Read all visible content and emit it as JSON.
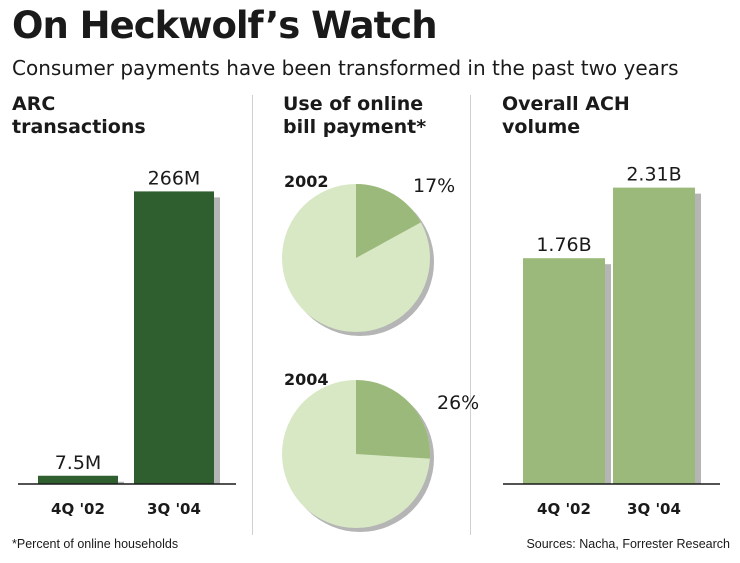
{
  "header": {
    "title": "On Heckwolf’s Watch",
    "subtitle": "Consumer payments have been transformed in the past two years"
  },
  "footer": {
    "footnote": "*Percent of online households",
    "source": "Sources: Nacha, Forrester Research"
  },
  "colors": {
    "dark_green": "#2f5f2f",
    "light_green": "#9bb97a",
    "pie_background": "#d8e8c4",
    "shadow": "#b5b5b5"
  },
  "chart_data": [
    {
      "type": "bar",
      "title": "ARC transactions",
      "title_lines": [
        "ARC",
        "transactions"
      ],
      "categories": [
        "4Q '02",
        "3Q '04"
      ],
      "values": [
        7.5,
        266
      ],
      "value_labels": [
        "7.5M",
        "266M"
      ],
      "unit": "millions",
      "ylim": [
        0,
        300
      ],
      "color": "#2f5f2f"
    },
    {
      "type": "pie",
      "title": "Use of online bill payment*",
      "title_lines": [
        "Use of online",
        "bill payment*"
      ],
      "pies": [
        {
          "label": "2002",
          "value": 17,
          "value_label": "17%"
        },
        {
          "label": "2004",
          "value": 26,
          "value_label": "26%"
        }
      ],
      "slice_color": "#9bb97a",
      "rest_color": "#d8e8c4"
    },
    {
      "type": "bar",
      "title": "Overall ACH volume",
      "title_lines": [
        "Overall ACH",
        "volume"
      ],
      "categories": [
        "4Q '02",
        "3Q '04"
      ],
      "values": [
        1.76,
        2.31
      ],
      "value_labels": [
        "1.76B",
        "2.31B"
      ],
      "unit": "billions",
      "ylim": [
        0,
        2.65
      ],
      "color": "#9bb97a"
    }
  ]
}
